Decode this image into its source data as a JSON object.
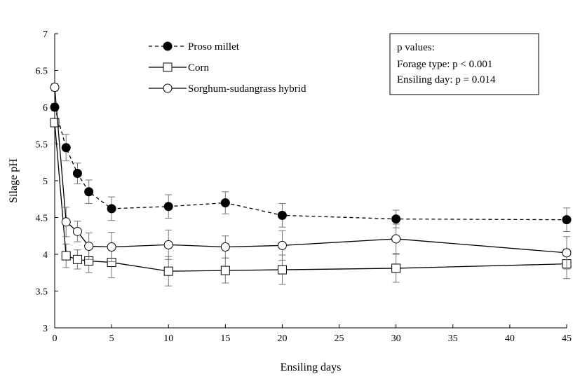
{
  "chart_data": {
    "type": "line",
    "xlabel": "Ensiling days",
    "ylabel": "Silage pH",
    "xlim": [
      0,
      45
    ],
    "ylim": [
      3,
      7
    ],
    "xticks": [
      0,
      5,
      10,
      15,
      20,
      25,
      30,
      35,
      40,
      45
    ],
    "yticks": [
      "3",
      "3.5",
      "4",
      "4.5",
      "5",
      "5.5",
      "6",
      "6.5",
      "7"
    ],
    "x": [
      0,
      1,
      2,
      3,
      5,
      10,
      15,
      20,
      30,
      45
    ],
    "series": [
      {
        "name": "Proso millet",
        "marker": "filled-circle",
        "line": "dashed",
        "values": [
          6.0,
          5.45,
          5.1,
          4.85,
          4.62,
          4.65,
          4.7,
          4.53,
          4.48,
          4.47
        ],
        "errors": [
          0.05,
          0.18,
          0.14,
          0.16,
          0.16,
          0.16,
          0.15,
          0.16,
          0.12,
          0.16
        ]
      },
      {
        "name": "Corn",
        "marker": "open-square",
        "line": "solid",
        "values": [
          5.79,
          3.98,
          3.93,
          3.91,
          3.89,
          3.77,
          3.78,
          3.79,
          3.81,
          3.87
        ],
        "errors": [
          0.05,
          0.16,
          0.13,
          0.16,
          0.21,
          0.2,
          0.17,
          0.2,
          0.19,
          0.2
        ]
      },
      {
        "name": "Sorghum-sudangrass hybrid",
        "marker": "open-circle",
        "line": "solid",
        "values": [
          6.27,
          4.44,
          4.31,
          4.11,
          4.1,
          4.13,
          4.1,
          4.12,
          4.21,
          4.02
        ],
        "errors": [
          0.05,
          0.2,
          0.14,
          0.18,
          0.2,
          0.2,
          0.15,
          0.2,
          0.2,
          0.22
        ]
      }
    ],
    "annotation": {
      "title": "p values:",
      "lines": [
        "Forage type: p < 0.001",
        "Ensiling day: p = 0.014"
      ]
    },
    "legend_position": "top-center"
  }
}
